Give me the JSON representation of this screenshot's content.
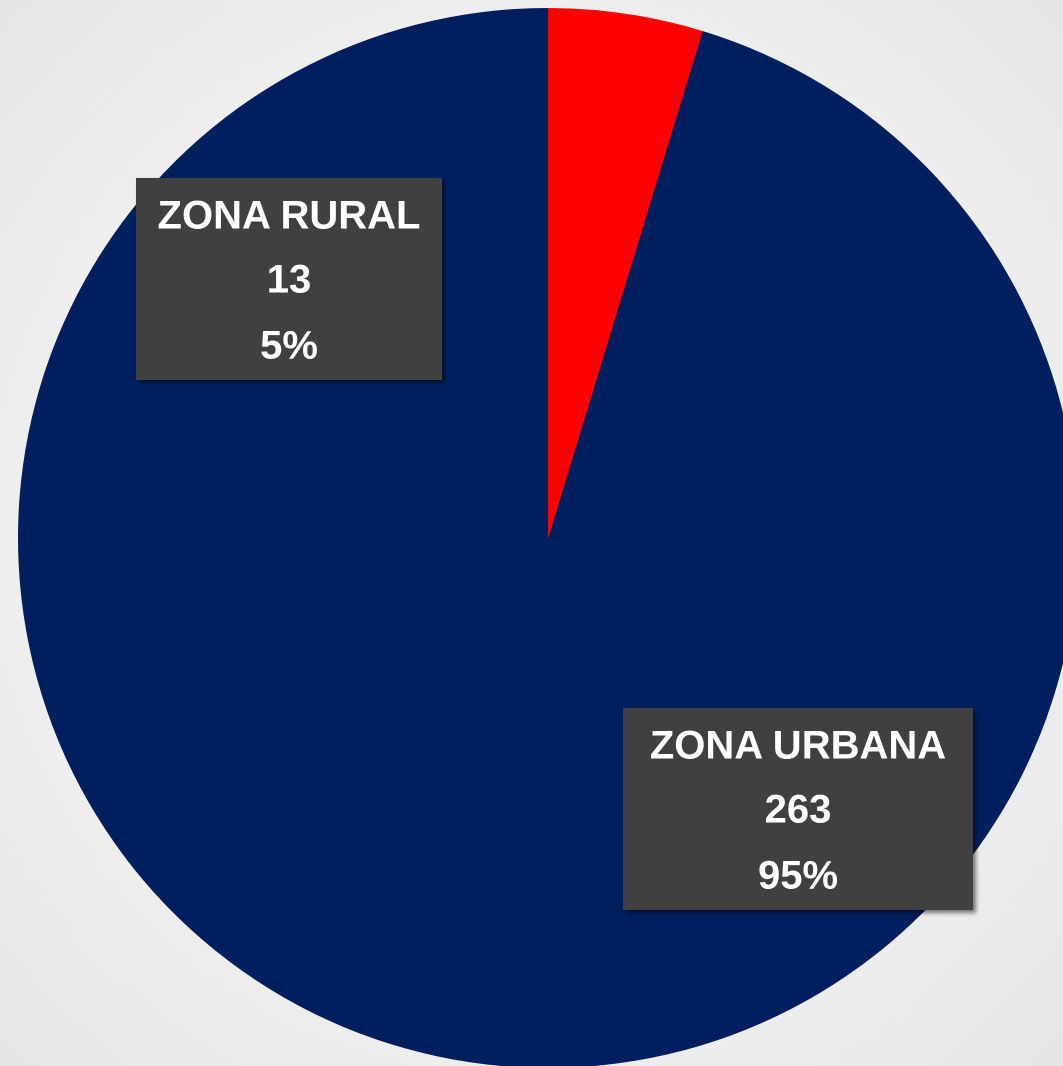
{
  "chart_data": {
    "type": "pie",
    "categories": [
      "ZONA RURAL",
      "ZONA URBANA"
    ],
    "values": [
      13,
      263
    ],
    "percent_labels": [
      "5%",
      "95%"
    ],
    "colors": [
      "#ff0000",
      "#001f5f"
    ]
  }
}
